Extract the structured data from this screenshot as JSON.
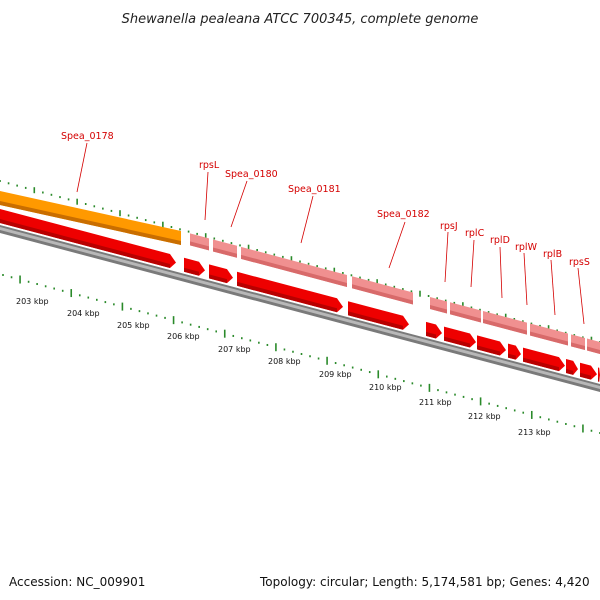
{
  "title": "Shewanella pealeana ATCC 700345, complete genome",
  "footer": {
    "accession": "Accession: NC_009901",
    "stats": "Topology: circular; Length: 5,174,581 bp; Genes: 4,420"
  },
  "gene_labels": [
    "Spea_0178",
    "rpsL",
    "Spea_0180",
    "Spea_0181",
    "Spea_0182",
    "rpsJ",
    "rplC",
    "rplD",
    "rplW",
    "rplB",
    "rpsS"
  ],
  "scale_labels": [
    "203 kbp",
    "204 kbp",
    "205 kbp",
    "206 kbp",
    "207 kbp",
    "208 kbp",
    "209 kbp",
    "210 kbp",
    "211 kbp",
    "212 kbp",
    "213 kbp"
  ],
  "colors": {
    "backbone": "#8a8a8a",
    "cds_strong": "#ee0000",
    "cds_light": "#f09090",
    "orange_feature": "#ff9900",
    "ticks": "#2a8a2a",
    "label": "#d40000"
  }
}
